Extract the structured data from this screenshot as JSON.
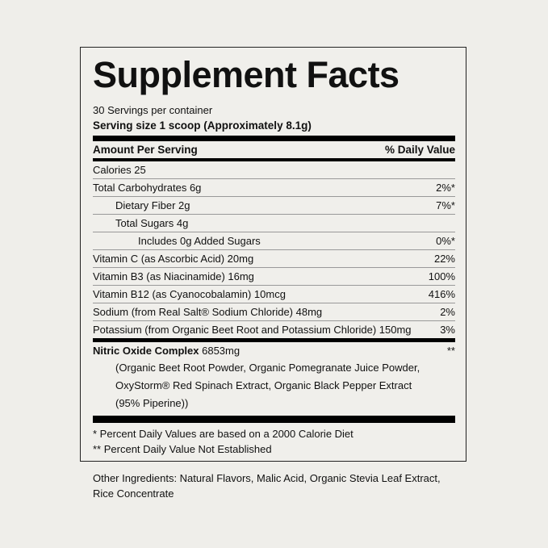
{
  "title": "Supplement Facts",
  "servings_per_container": "30 Servings per container",
  "serving_size": "Serving size 1 scoop (Approximately 8.1g)",
  "header": {
    "left": "Amount Per Serving",
    "right": "% Daily Value"
  },
  "rows": [
    {
      "label": "Calories 25",
      "dv": ""
    },
    {
      "label": "Total Carbohydrates 6g",
      "dv": "2%*"
    },
    {
      "label": "Dietary Fiber 2g",
      "dv": "7%*"
    },
    {
      "label": "Total Sugars 4g",
      "dv": ""
    },
    {
      "label": "Includes 0g Added Sugars",
      "dv": "0%*"
    },
    {
      "label": "Vitamin C (as Ascorbic Acid) 20mg",
      "dv": "22%"
    },
    {
      "label": "Vitamin B3 (as Niacinamide) 16mg",
      "dv": "100%"
    },
    {
      "label": "Vitamin B12 (as Cyanocobalamin) 10mcg",
      "dv": "416%"
    },
    {
      "label": "Sodium (from Real Salt® Sodium Chloride) 48mg",
      "dv": "2%"
    },
    {
      "label": "Potassium (from Organic Beet Root and Potassium Chloride) 150mg",
      "dv": "3%"
    }
  ],
  "complex": {
    "name": "Nitric Oxide Complex",
    "amount": "6853mg",
    "dv": "**",
    "ingredients": [
      "(Organic Beet Root Powder, Organic Pomegranate Juice Powder,",
      "OxyStorm® Red Spinach Extract, Organic Black Pepper Extract",
      "(95% Piperine))"
    ]
  },
  "footnotes": [
    "* Percent Daily Values are based on a 2000 Calorie Diet",
    "** Percent Daily Value Not Established"
  ],
  "other_ingredients": "Other Ingredients: Natural Flavors, Malic Acid, Organic Stevia Leaf Extract, Rice Concentrate"
}
